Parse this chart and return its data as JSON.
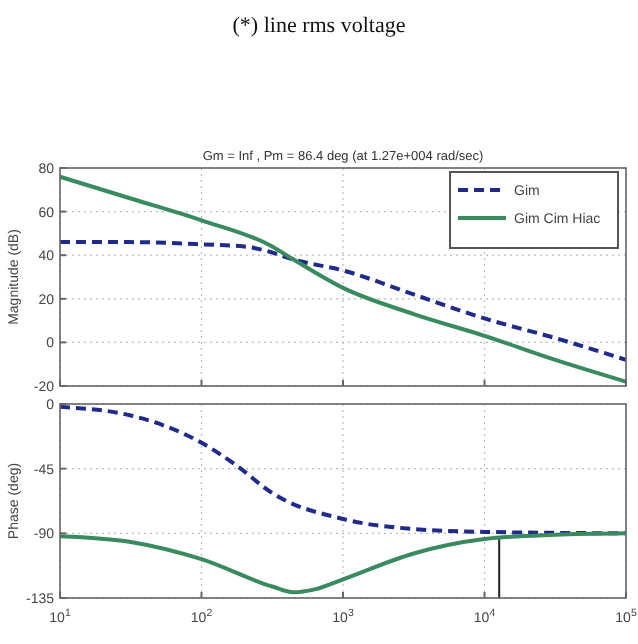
{
  "chart_data": [
    {
      "type": "line",
      "title": "Gm = Inf ,  Pm = 86.4 deg (at 1.27e+004 rad/sec)",
      "ylabel": "Magnitude (dB)",
      "annotations": [
        "(*) line rms voltage"
      ],
      "log": "x",
      "xlim": [
        10,
        100000
      ],
      "xticks": [
        {
          "value": 10,
          "label": null
        },
        {
          "value": 100,
          "label": null
        },
        {
          "value": 1000,
          "label": null
        },
        {
          "value": 10000,
          "label": null
        },
        {
          "value": 100000,
          "label": null
        }
      ],
      "ylim": [
        -20,
        80
      ],
      "yticks": [
        -20,
        0,
        20,
        40,
        60,
        80
      ],
      "tick_labels": "y",
      "grid": true,
      "legend": "top right",
      "series": [
        {
          "name": "Gim",
          "color": "#1f2a8a",
          "line_style": "dashed",
          "x": [
            10,
            31.6,
            100,
            200,
            288,
            447,
            1000,
            3162,
            10000,
            31623,
            100000
          ],
          "values": [
            46,
            46,
            45,
            44,
            42,
            38,
            33,
            22,
            11,
            2,
            -8
          ]
        },
        {
          "name": "Gim Cim Hiac",
          "color": "#3a8a5f",
          "line_style": "solid",
          "x": [
            10,
            31.6,
            100,
            316,
            447,
            1000,
            3162,
            10000,
            31623,
            100000
          ],
          "values": [
            76,
            66,
            56,
            44,
            38,
            25,
            13,
            3,
            -8,
            -18
          ]
        }
      ]
    },
    {
      "type": "line",
      "ylabel": "Phase (deg)",
      "log": "x",
      "xlim": [
        10,
        100000
      ],
      "xticks": [
        {
          "value": 10,
          "label": "10$^{1}$"
        },
        {
          "value": 100,
          "label": "10$^{2}$"
        },
        {
          "value": 1000,
          "label": "10$^{3}$"
        },
        {
          "value": 10000,
          "label": "10$^{4}$"
        },
        {
          "value": 100000,
          "label": "10$^{5}$"
        }
      ],
      "ylim": [
        -135,
        0
      ],
      "yticks": [
        -135,
        -90,
        -45,
        0
      ],
      "grid": true,
      "ref_lines": [
        {
          "axis": "x",
          "value": 12700,
          "color": "#222222"
        }
      ],
      "series": [
        {
          "color": "#1f2a8a",
          "line_style": "dashed",
          "x": [
            10,
            31.6,
            100,
            178,
            316,
            1000,
            3162,
            10000,
            100000
          ],
          "values": [
            -2,
            -8,
            -27,
            -43,
            -62,
            -80,
            -87,
            -89,
            -90
          ]
        },
        {
          "color": "#3a8a5f",
          "line_style": "solid",
          "x": [
            10,
            31.6,
            100,
            316,
            447,
            631,
            1000,
            3162,
            10000,
            31623,
            100000
          ],
          "values": [
            -92,
            -96,
            -108,
            -127,
            -131,
            -129,
            -122,
            -104,
            -94,
            -91,
            -90
          ]
        }
      ]
    }
  ]
}
